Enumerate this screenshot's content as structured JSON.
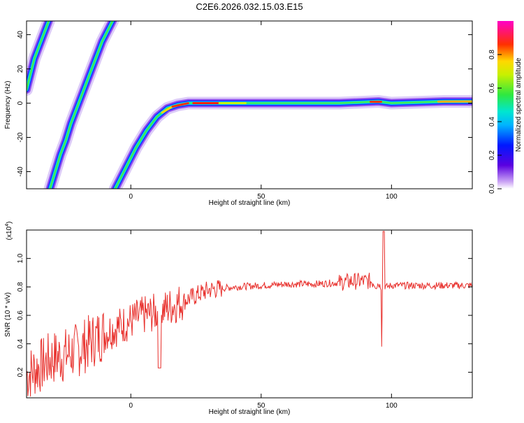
{
  "figure": {
    "title": "C2E6.2026.032.15.03.E15"
  },
  "chart_data": [
    {
      "type": "heatmap",
      "name": "spectrogram",
      "xlabel": "Height of straight line (km)",
      "ylabel": "Frequency (Hz)",
      "xlim": [
        -40,
        131
      ],
      "ylim": [
        -50,
        48
      ],
      "x_ticks": [
        0,
        50,
        100
      ],
      "x_tick_labels": [
        "0",
        "50",
        "100"
      ],
      "y_ticks": [
        -40,
        -20,
        0,
        20,
        40
      ],
      "y_tick_labels": [
        "-40",
        "-20",
        "0",
        "20",
        "40"
      ],
      "grid": false,
      "colorscale": "rainbow (purple-blue-cyan-green-yellow-red-magenta)",
      "colorbar": {
        "label": "Normalized spectral amplitude",
        "range": [
          0.0,
          1.0
        ],
        "ticks": [
          0.0,
          0.2,
          0.4,
          0.6,
          0.8
        ],
        "tick_labels": [
          "0.0",
          "0.2",
          "0.4",
          "0.6",
          "0.8"
        ]
      },
      "ridges": [
        {
          "x": [
            -40,
            -39,
            -38,
            -37,
            -36,
            -35,
            -34,
            -33,
            -32,
            -31
          ],
          "y": [
            8,
            14,
            20,
            26,
            30,
            34,
            38,
            42,
            46,
            50
          ]
        },
        {
          "x": [
            -31,
            -29,
            -27,
            -25,
            -23,
            -21,
            -19,
            -17,
            -15,
            -13,
            -11,
            -9,
            -7,
            -6
          ],
          "y": [
            -50,
            -40,
            -30,
            -22,
            -12,
            -4,
            4,
            12,
            20,
            28,
            36,
            42,
            48,
            52
          ]
        },
        {
          "x": [
            -6,
            -2,
            2,
            6,
            10,
            14,
            18,
            22,
            30,
            40,
            60,
            80,
            95,
            100,
            120,
            131
          ],
          "y": [
            -50,
            -38,
            -26,
            -16,
            -8,
            -3,
            -1,
            0,
            0,
            0,
            0,
            0,
            1,
            0,
            1,
            1
          ]
        }
      ]
    },
    {
      "type": "line",
      "name": "snr",
      "xlabel": "Height of straight line (km)",
      "ylabel": "SNR (10 * v/v)",
      "y_multiplier_label": "(x10",
      "y_multiplier_exp": "4",
      "xlim": [
        -40,
        131
      ],
      "ylim": [
        0.02,
        1.2
      ],
      "x_ticks": [
        0,
        50,
        100
      ],
      "x_tick_labels": [
        "0",
        "50",
        "100"
      ],
      "y_ticks": [
        0.2,
        0.4,
        0.6,
        0.8,
        1.0
      ],
      "y_tick_labels": [
        "0.2",
        "0.4",
        "0.6",
        "0.8",
        "1.0"
      ],
      "grid": false,
      "color": "#e8302c",
      "envelope": {
        "x": [
          -40,
          -35,
          -30,
          -25,
          -20,
          -15,
          -10,
          -5,
          0,
          5,
          10,
          15,
          20,
          25,
          30,
          35,
          40,
          50,
          60,
          70,
          80,
          85,
          90,
          93,
          95,
          96,
          97,
          98,
          100,
          110,
          120,
          131
        ],
        "y": [
          0.18,
          0.24,
          0.3,
          0.32,
          0.36,
          0.42,
          0.48,
          0.52,
          0.56,
          0.6,
          0.62,
          0.66,
          0.7,
          0.74,
          0.78,
          0.79,
          0.8,
          0.81,
          0.82,
          0.82,
          0.83,
          0.84,
          0.84,
          0.84,
          0.82,
          0.8,
          0.81,
          0.8,
          0.81,
          0.81,
          0.81,
          0.81
        ]
      },
      "features": {
        "dip_x": 11,
        "dip_y": 0.23,
        "spike_x": 97,
        "spike_max": 1.19,
        "spike_min": 0.38
      }
    }
  ]
}
